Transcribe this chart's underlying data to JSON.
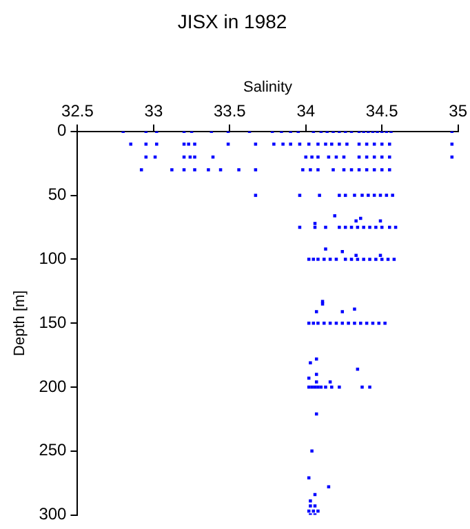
{
  "chart_data": {
    "type": "scatter",
    "title": "JISX in 1982",
    "xlabel": "Salinity",
    "ylabel": "Depth [m]",
    "xlim": [
      32.5,
      35
    ],
    "xticks": [
      32.5,
      33,
      33.5,
      34,
      34.5,
      35
    ],
    "ylim": [
      300,
      0
    ],
    "yticks": [
      0,
      50,
      100,
      150,
      200,
      250,
      300
    ],
    "grid": false,
    "legend": false,
    "marker": "square",
    "series": [
      {
        "color": "#0000ff",
        "x": [
          32.8,
          32.95,
          33.02,
          33.2,
          33.25,
          33.38,
          33.49,
          33.63,
          33.78,
          33.84,
          33.9,
          33.95,
          34.05,
          34.1,
          34.14,
          34.18,
          34.22,
          34.26,
          34.3,
          34.35,
          34.38,
          34.41,
          34.44,
          34.47,
          34.5,
          34.53,
          34.56,
          34.96,
          32.85,
          32.95,
          33.02,
          33.2,
          33.23,
          33.27,
          33.49,
          33.67,
          33.79,
          33.85,
          33.9,
          33.96,
          34.02,
          34.08,
          34.13,
          34.17,
          34.22,
          34.27,
          34.35,
          34.4,
          34.45,
          34.5,
          34.55,
          34.96,
          32.95,
          33.01,
          33.2,
          33.24,
          33.27,
          33.39,
          34.0,
          34.04,
          34.08,
          34.15,
          34.2,
          34.25,
          34.35,
          34.4,
          34.45,
          34.5,
          34.55,
          34.96,
          32.92,
          33.12,
          33.2,
          33.27,
          33.36,
          33.44,
          33.56,
          33.67,
          33.98,
          34.03,
          34.08,
          34.18,
          34.25,
          34.3,
          34.35,
          34.4,
          34.45,
          34.5,
          34.55,
          33.67,
          33.96,
          34.09,
          34.22,
          34.26,
          34.32,
          34.37,
          34.41,
          34.45,
          34.49,
          34.53,
          34.57,
          33.96,
          34.06,
          34.13,
          34.22,
          34.26,
          34.3,
          34.34,
          34.38,
          34.42,
          34.46,
          34.5,
          34.55,
          34.59,
          34.19,
          34.36,
          34.33,
          34.49,
          34.06,
          34.02,
          34.05,
          34.08,
          34.12,
          34.16,
          34.2,
          34.26,
          34.3,
          34.34,
          34.38,
          34.42,
          34.46,
          34.5,
          34.54,
          34.58,
          34.13,
          34.24,
          34.33,
          34.49,
          34.02,
          34.05,
          34.08,
          34.12,
          34.16,
          34.2,
          34.24,
          34.28,
          34.32,
          34.36,
          34.4,
          34.44,
          34.48,
          34.52,
          34.11,
          34.11,
          34.07,
          34.24,
          34.32,
          34.02,
          34.04,
          34.06,
          34.08,
          34.1,
          34.13,
          34.17,
          34.22,
          34.37,
          34.42,
          34.07,
          34.03,
          34.34,
          34.07,
          34.02,
          34.07,
          34.16,
          34.07,
          34.04,
          34.02,
          34.15,
          34.06,
          34.03,
          34.03,
          34.06,
          34.02,
          34.05,
          34.08,
          34.03,
          34.06
        ],
        "values": [
          0,
          0,
          0,
          0,
          0,
          0,
          0,
          0,
          0,
          0,
          0,
          0,
          0,
          0,
          0,
          0,
          0,
          0,
          0,
          0,
          0,
          0,
          0,
          0,
          0,
          0,
          0,
          0,
          10,
          10,
          10,
          10,
          10,
          10,
          10,
          10,
          10,
          10,
          10,
          10,
          10,
          10,
          10,
          10,
          10,
          10,
          10,
          10,
          10,
          10,
          10,
          10,
          20,
          20,
          20,
          20,
          20,
          20,
          20,
          20,
          20,
          20,
          20,
          20,
          20,
          20,
          20,
          20,
          20,
          20,
          30,
          30,
          30,
          30,
          30,
          30,
          30,
          30,
          30,
          30,
          30,
          30,
          30,
          30,
          30,
          30,
          30,
          30,
          30,
          50,
          50,
          50,
          50,
          50,
          50,
          50,
          50,
          50,
          50,
          50,
          50,
          75,
          75,
          75,
          75,
          75,
          75,
          75,
          75,
          75,
          75,
          75,
          75,
          75,
          66,
          68,
          70,
          70,
          72,
          100,
          100,
          100,
          100,
          100,
          100,
          100,
          100,
          100,
          100,
          100,
          100,
          100,
          100,
          100,
          92,
          94,
          97,
          97,
          150,
          150,
          150,
          150,
          150,
          150,
          150,
          150,
          150,
          150,
          150,
          150,
          150,
          150,
          133,
          135,
          141,
          141,
          139,
          200,
          200,
          200,
          200,
          200,
          200,
          200,
          200,
          200,
          200,
          178,
          181,
          186,
          190,
          193,
          196,
          196,
          221,
          250,
          271,
          278,
          284,
          289,
          293,
          293,
          297,
          297,
          297,
          300,
          300
        ]
      }
    ]
  }
}
